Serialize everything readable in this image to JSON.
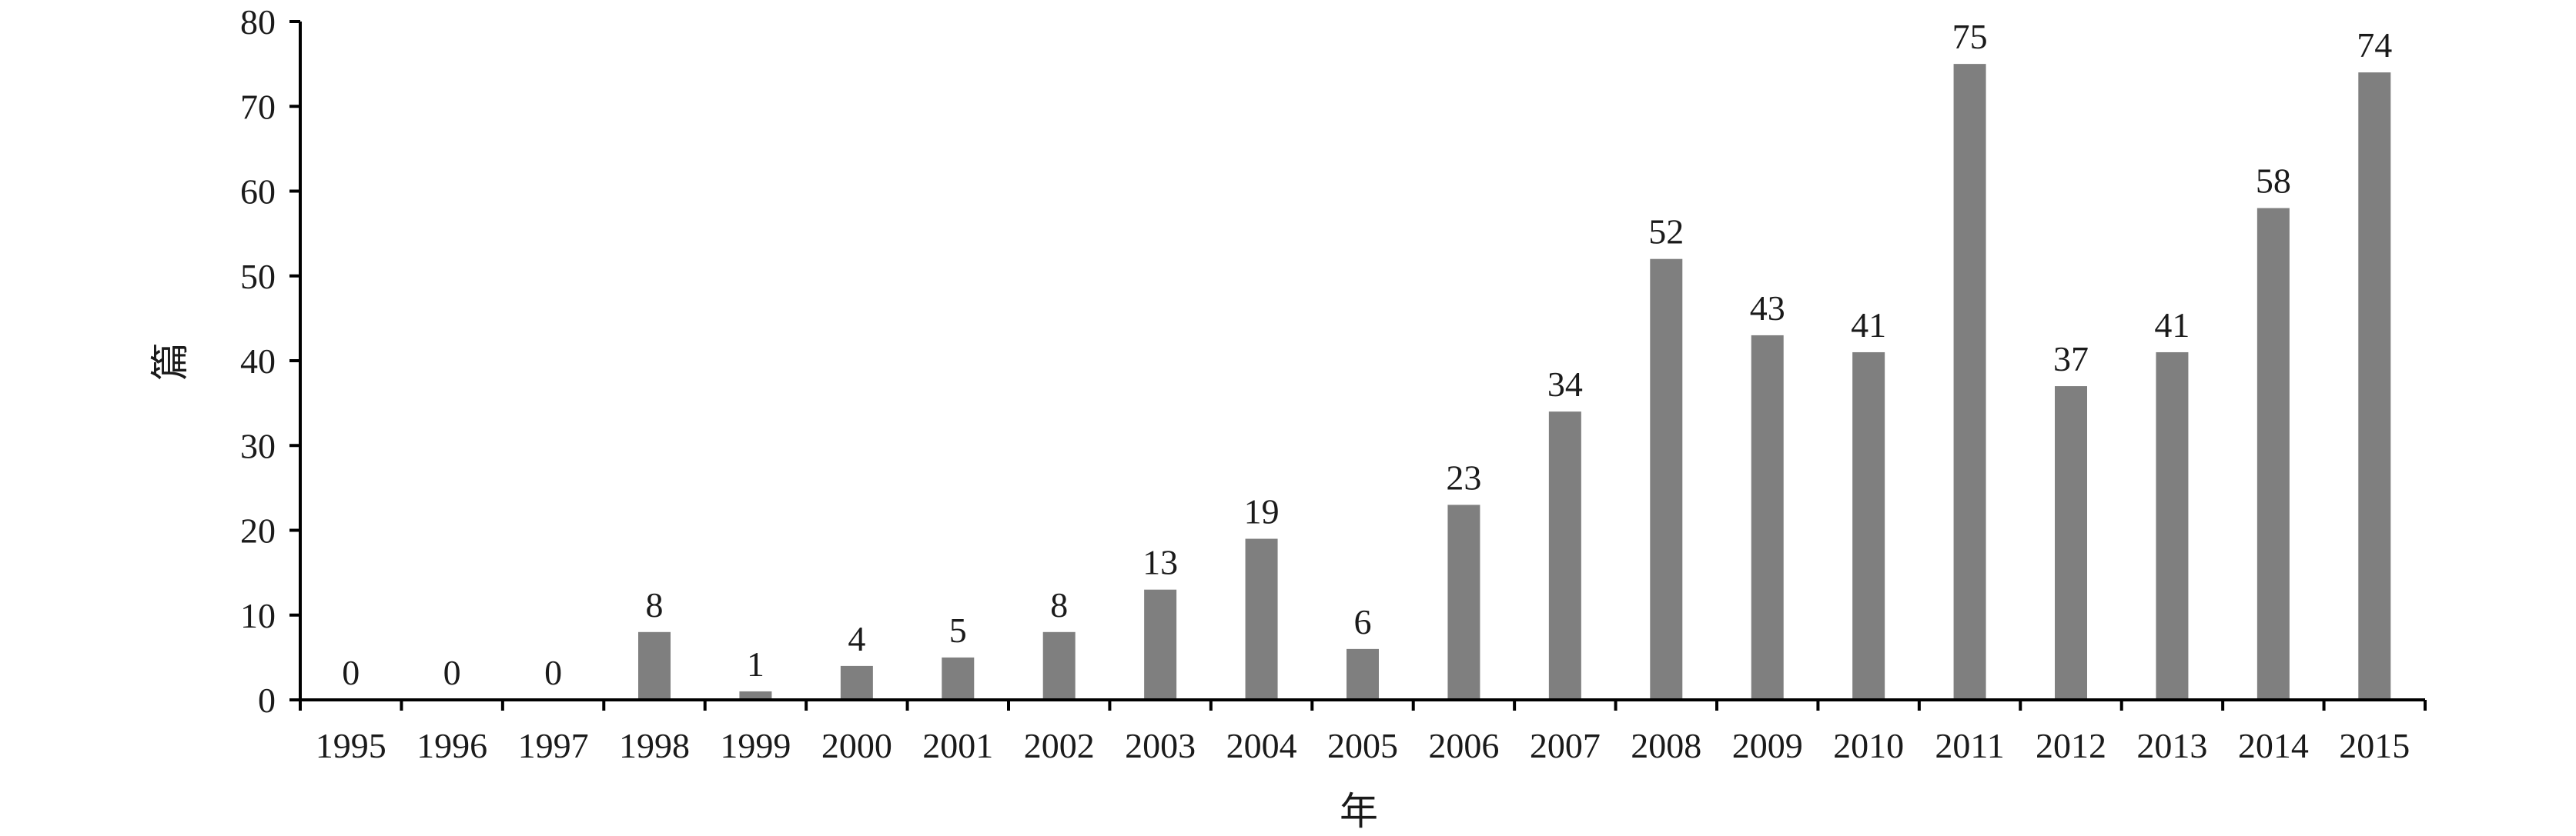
{
  "chart_data": {
    "type": "bar",
    "categories": [
      "1995",
      "1996",
      "1997",
      "1998",
      "1999",
      "2000",
      "2001",
      "2002",
      "2003",
      "2004",
      "2005",
      "2006",
      "2007",
      "2008",
      "2009",
      "2010",
      "2011",
      "2012",
      "2013",
      "2014",
      "2015"
    ],
    "values": [
      0,
      0,
      0,
      8,
      1,
      4,
      5,
      8,
      13,
      19,
      6,
      23,
      34,
      52,
      43,
      41,
      75,
      37,
      41,
      58,
      74
    ],
    "xlabel": "年",
    "ylabel": "篇",
    "ylim": [
      0,
      80
    ],
    "yticks": [
      0,
      10,
      20,
      30,
      40,
      50,
      60,
      70,
      80
    ],
    "bar_color": "#7f7f7f",
    "axis_color": "#000000",
    "grid": false,
    "legend": "none"
  }
}
